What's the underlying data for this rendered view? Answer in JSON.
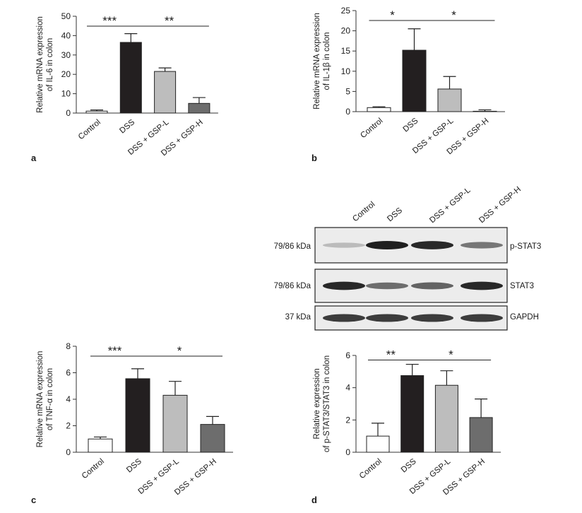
{
  "figure": {
    "panel_letters": [
      "a",
      "b",
      "c",
      "d"
    ]
  },
  "chart_data": [
    {
      "id": "a",
      "type": "bar",
      "ylabel": [
        "Relative mRNA expression",
        "of IL-6 in colon"
      ],
      "ylim": [
        0,
        50
      ],
      "yticks": [
        0,
        10,
        20,
        30,
        40,
        50
      ],
      "categories": [
        "Control",
        "DSS",
        "DSS + GSP-L",
        "DSS + GSP-H"
      ],
      "values": [
        1,
        36.5,
        21.5,
        5
      ],
      "errors": [
        0.6,
        4.5,
        1.8,
        3
      ],
      "colors": [
        "#ffffff",
        "#231f20",
        "#bdbdbd",
        "#6d6d6d"
      ],
      "significance": [
        {
          "from": 0,
          "to": 1,
          "label": "***"
        },
        {
          "from": 1,
          "to": 3,
          "label": "**"
        }
      ]
    },
    {
      "id": "b",
      "type": "bar",
      "ylabel": [
        "Relative mRNA expression",
        "of IL-1β in colon"
      ],
      "ylim": [
        0,
        25
      ],
      "yticks": [
        0,
        5,
        10,
        15,
        20,
        25
      ],
      "categories": [
        "Control",
        "DSS",
        "DSS + GSP-L",
        "DSS + GSP-H"
      ],
      "values": [
        1,
        15.2,
        5.6,
        0.1
      ],
      "errors": [
        0.2,
        5.3,
        3.1,
        0.35
      ],
      "colors": [
        "#ffffff",
        "#231f20",
        "#bdbdbd",
        "#6d6d6d"
      ],
      "significance": [
        {
          "from": 0,
          "to": 1,
          "label": "*"
        },
        {
          "from": 1,
          "to": 3,
          "label": "*"
        }
      ]
    },
    {
      "id": "c",
      "type": "bar",
      "ylabel": [
        "Relative mRNA expression",
        "of TNF-α in colon"
      ],
      "ylim": [
        0,
        8
      ],
      "yticks": [
        0,
        2,
        4,
        6,
        8
      ],
      "categories": [
        "Control",
        "DSS",
        "DSS + GSP-L",
        "DSS + GSP-H"
      ],
      "values": [
        1,
        5.55,
        4.3,
        2.1
      ],
      "errors": [
        0.15,
        0.75,
        1.05,
        0.6
      ],
      "colors": [
        "#ffffff",
        "#231f20",
        "#bdbdbd",
        "#6d6d6d"
      ],
      "significance": [
        {
          "from": 0,
          "to": 1,
          "label": "***"
        },
        {
          "from": 1,
          "to": 3,
          "label": "*"
        }
      ]
    },
    {
      "id": "d",
      "type": "bar",
      "ylabel": [
        "Relative expression",
        "of p-STAT3/STAT3 in colon"
      ],
      "ylim": [
        0,
        6
      ],
      "yticks": [
        0,
        2,
        4,
        6
      ],
      "categories": [
        "Control",
        "DSS",
        "DSS + GSP-L",
        "DSS + GSP-H"
      ],
      "values": [
        1,
        4.75,
        4.15,
        2.15
      ],
      "errors": [
        0.8,
        0.7,
        0.9,
        1.15
      ],
      "colors": [
        "#ffffff",
        "#231f20",
        "#bdbdbd",
        "#6d6d6d"
      ],
      "significance": [
        {
          "from": 0,
          "to": 1,
          "label": "**"
        },
        {
          "from": 1,
          "to": 3,
          "label": "*"
        }
      ]
    }
  ],
  "western_blot": {
    "lanes": [
      "Control",
      "DSS",
      "DSS + GSP-L",
      "DSS + GSP-H"
    ],
    "rows": [
      {
        "kda": "79/86 kDa",
        "protein": "p-STAT3",
        "intensity": [
          0.2,
          1.0,
          0.95,
          0.55
        ]
      },
      {
        "kda": "79/86 kDa",
        "protein": "STAT3",
        "intensity": [
          0.95,
          0.6,
          0.65,
          0.95
        ]
      },
      {
        "kda": "37 kDa",
        "protein": "GAPDH",
        "intensity": [
          0.85,
          0.85,
          0.85,
          0.85
        ]
      }
    ]
  }
}
